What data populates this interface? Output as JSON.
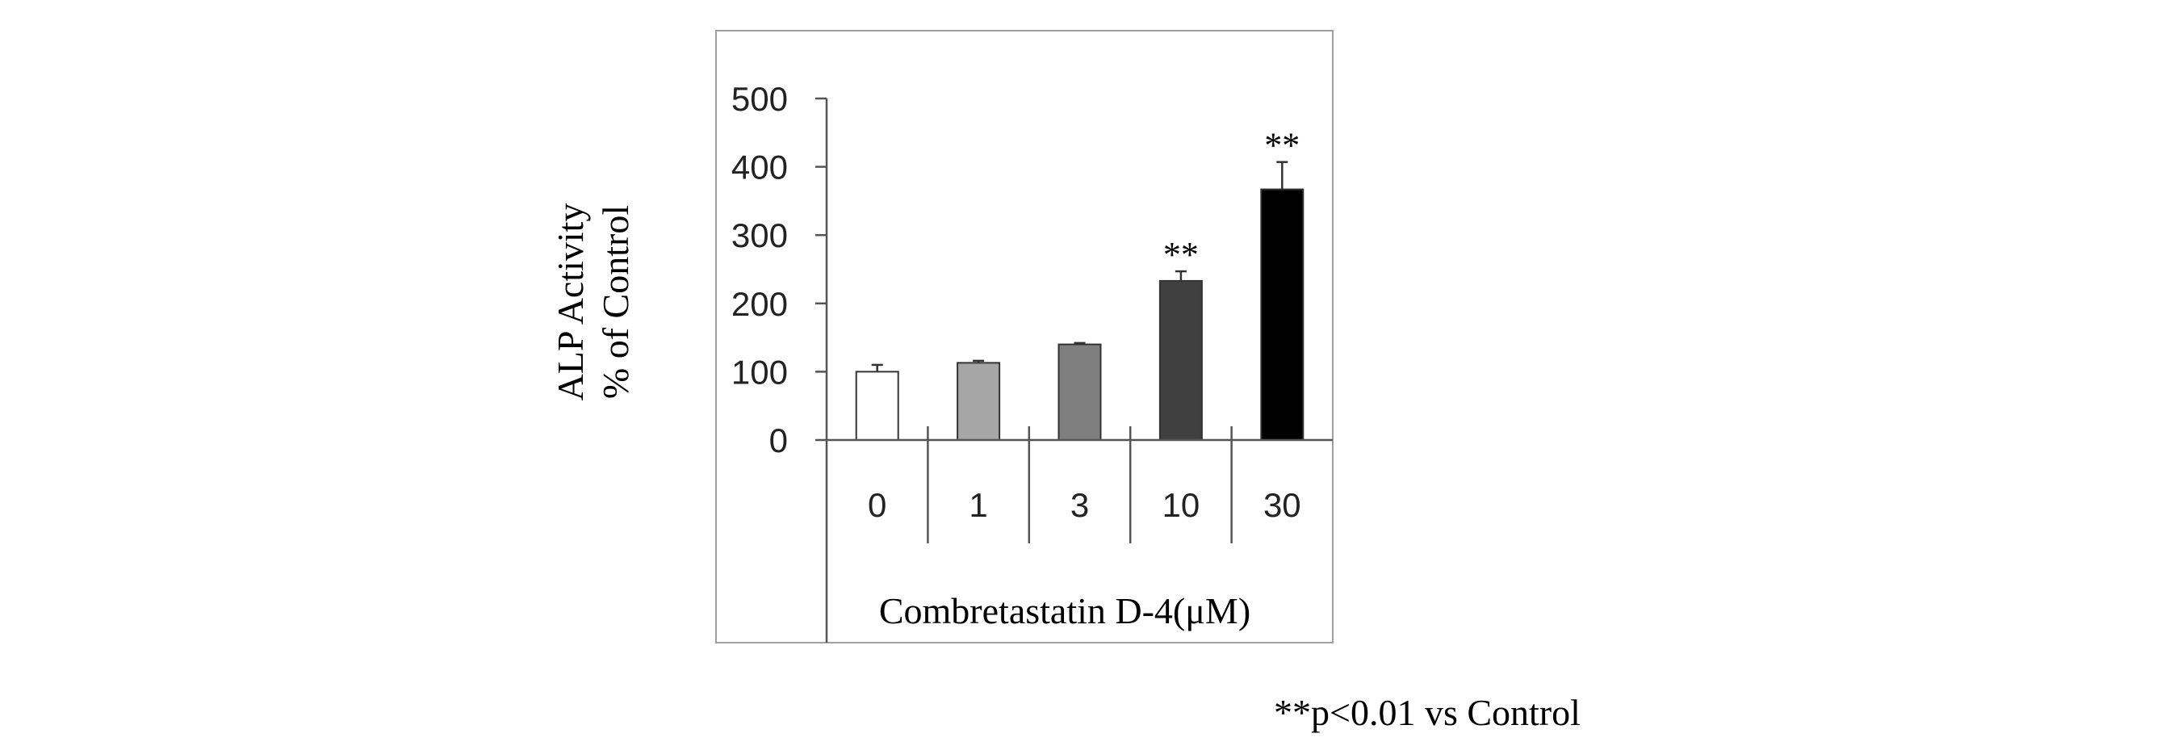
{
  "chart_data": {
    "type": "bar",
    "categories": [
      "0",
      "1",
      "3",
      "10",
      "30"
    ],
    "values": [
      100,
      113,
      140,
      233,
      367
    ],
    "errors": [
      10,
      3,
      2,
      14,
      40
    ],
    "significance": [
      "",
      "",
      "",
      "**",
      "**"
    ],
    "bar_colors": [
      "#ffffff",
      "#a6a6a6",
      "#7f7f7f",
      "#404040",
      "#000000"
    ],
    "ylabel_line1": "ALP Activity",
    "ylabel_line2": "% of Control",
    "xlabel": "Combretastatin D-4(μM)",
    "ylim": [
      0,
      500
    ],
    "yticks": [
      0,
      100,
      200,
      300,
      400,
      500
    ],
    "footnote": "**p<0.01 vs Control",
    "grid": false,
    "legend": "none"
  }
}
